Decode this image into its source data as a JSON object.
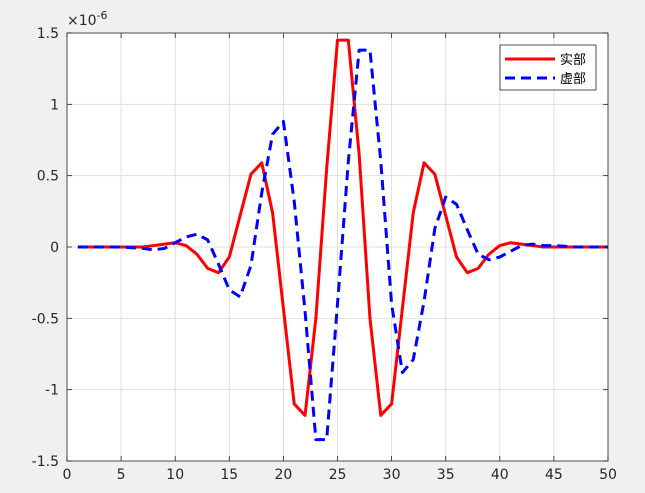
{
  "chart_data": {
    "type": "line",
    "title": "",
    "xlabel": "",
    "ylabel": "",
    "xlim": [
      0,
      50
    ],
    "ylim": [
      -1.5,
      1.5
    ],
    "y_exponent_label": "×10",
    "y_exponent_power": "-6",
    "x_ticks": [
      "0",
      "5",
      "10",
      "15",
      "20",
      "25",
      "30",
      "35",
      "40",
      "45",
      "50"
    ],
    "y_ticks": [
      "-1.5",
      "-1",
      "-0.5",
      "0",
      "0.5",
      "1",
      "1.5"
    ],
    "grid": true,
    "legend_position": "top-right",
    "x": [
      1,
      2,
      3,
      4,
      5,
      6,
      7,
      8,
      9,
      10,
      11,
      12,
      13,
      14,
      15,
      16,
      17,
      18,
      19,
      20,
      21,
      22,
      23,
      24,
      25,
      26,
      27,
      28,
      29,
      30,
      31,
      32,
      33,
      34,
      35,
      36,
      37,
      38,
      39,
      40,
      41,
      42,
      43,
      44,
      45,
      46,
      47,
      48,
      49,
      50
    ],
    "series": [
      {
        "name": "实部",
        "color": "#ff0000",
        "style": "solid",
        "values": [
          0,
          0,
          0,
          0,
          0,
          0,
          0,
          0.01,
          0.02,
          0.03,
          0.01,
          -0.05,
          -0.15,
          -0.18,
          -0.07,
          0.22,
          0.51,
          0.59,
          0.24,
          -0.43,
          -1.1,
          -1.18,
          -0.5,
          0.55,
          1.45,
          1.45,
          0.65,
          -0.5,
          -1.18,
          -1.1,
          -0.43,
          0.24,
          0.59,
          0.51,
          0.22,
          -0.07,
          -0.18,
          -0.15,
          -0.05,
          0.01,
          0.03,
          0.02,
          0.01,
          0,
          0,
          0,
          0,
          0,
          0,
          0
        ]
      },
      {
        "name": "虚部",
        "color": "#0000ff",
        "style": "dashed",
        "values": [
          0,
          0,
          0,
          0,
          0,
          -0.005,
          -0.01,
          -0.02,
          -0.01,
          0.03,
          0.07,
          0.09,
          0.05,
          -0.12,
          -0.3,
          -0.35,
          -0.13,
          0.38,
          0.79,
          0.88,
          0.32,
          -0.45,
          -1.35,
          -1.35,
          -0.4,
          0.6,
          1.38,
          1.38,
          0.6,
          -0.4,
          -0.88,
          -0.79,
          -0.38,
          0.13,
          0.35,
          0.3,
          0.12,
          -0.05,
          -0.09,
          -0.07,
          -0.03,
          0.01,
          0.02,
          0.01,
          0.01,
          0.005,
          0,
          0,
          0,
          0
        ]
      }
    ]
  }
}
